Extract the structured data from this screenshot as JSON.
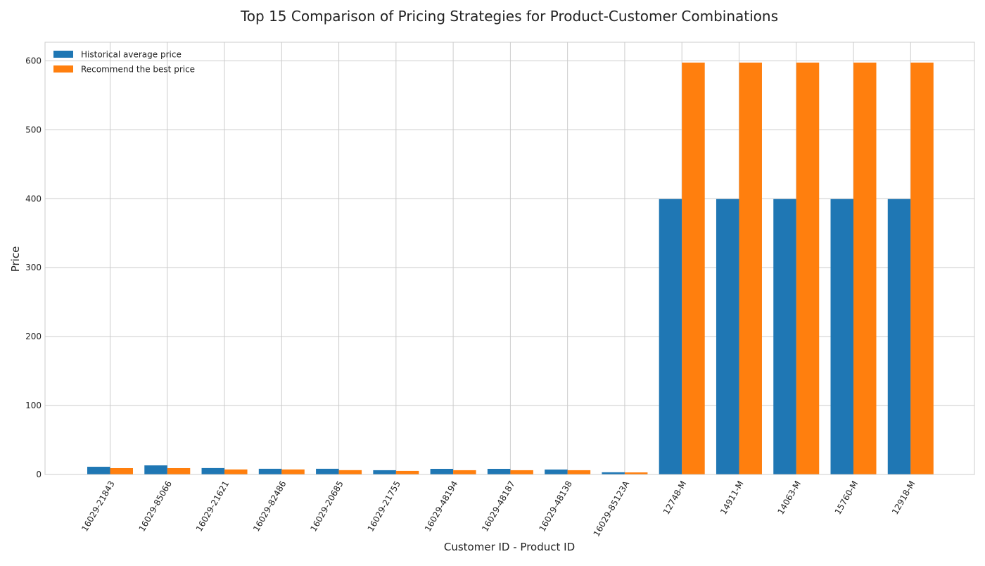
{
  "chart_data": {
    "type": "bar",
    "title": "Top 15 Comparison of Pricing Strategies for Product-Customer Combinations",
    "xlabel": "Customer ID - Product ID",
    "ylabel": "Price",
    "ylim": [
      0,
      627
    ],
    "yticks": [
      0,
      100,
      200,
      300,
      400,
      500,
      600
    ],
    "grid": true,
    "legend_position": "top-left",
    "categories": [
      "16029-21843",
      "16029-85066",
      "16029-21621",
      "16029-82486",
      "16029-20685",
      "16029-21755",
      "16029-48194",
      "16029-48187",
      "16029-48138",
      "16029-85123A",
      "12748-M",
      "14911-M",
      "14063-M",
      "15760-M",
      "12918-M"
    ],
    "series": [
      {
        "name": "Historical average price",
        "color": "#1f77b4",
        "values": [
          11.2,
          13.2,
          9.3,
          8.3,
          8.3,
          6.2,
          8.2,
          8.2,
          7.2,
          3.2,
          399.5,
          399.5,
          399.5,
          399.5,
          399.5
        ]
      },
      {
        "name": "Recommend the best price",
        "color": "#ff7f0e",
        "values": [
          9.2,
          9.2,
          7.3,
          7.3,
          6.3,
          5.2,
          6.2,
          6.2,
          6.2,
          3.0,
          597.5,
          597.5,
          597.5,
          597.5,
          597.5
        ]
      }
    ]
  }
}
